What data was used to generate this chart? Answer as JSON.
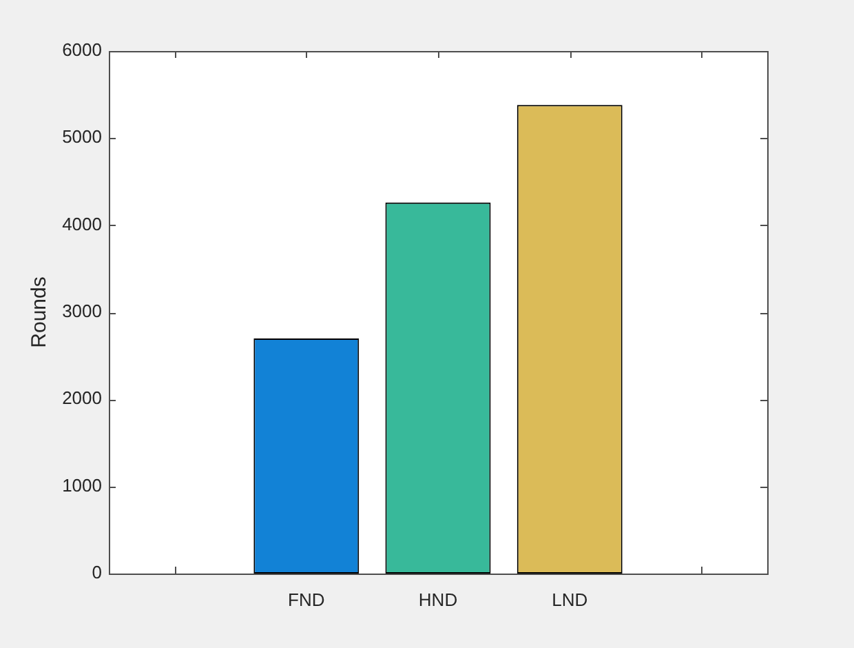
{
  "chart_data": {
    "type": "bar",
    "ylabel": "Rounds",
    "categories": [
      null,
      "FND",
      "HND",
      "LND",
      null
    ],
    "values": [
      0,
      2700,
      4260,
      5380,
      0
    ],
    "colors": [
      "#000000",
      "#1282d6",
      "#38b99a",
      "#dbbb58",
      "#000000"
    ],
    "ylim": [
      0,
      6000
    ],
    "yticks": [
      0,
      1000,
      2000,
      3000,
      4000,
      5000,
      6000
    ],
    "legend": false
  }
}
